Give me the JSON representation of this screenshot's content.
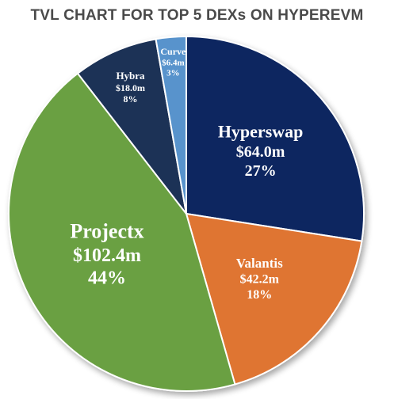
{
  "chart_data": {
    "type": "pie",
    "title": "TVL CHART FOR TOP 5 DEXs ON HYPEREVM",
    "slices": [
      {
        "name": "Hyperswap",
        "value_label": "$64.0m",
        "pct_label": "27%",
        "value": 64.0,
        "percent": 27,
        "color": "#0d2560"
      },
      {
        "name": "Valantis",
        "value_label": "$42.2m",
        "pct_label": "18%",
        "value": 42.2,
        "percent": 18,
        "color": "#df7431"
      },
      {
        "name": "Projectx",
        "value_label": "$102.4m",
        "pct_label": "44%",
        "value": 102.4,
        "percent": 44,
        "color": "#6aa042"
      },
      {
        "name": "Hybra",
        "value_label": "$18.0m",
        "pct_label": "8%",
        "value": 18.0,
        "percent": 8,
        "color": "#1e3257"
      },
      {
        "name": "Curve",
        "value_label": "$6.4m",
        "pct_label": "3%",
        "value": 6.4,
        "percent": 3,
        "color": "#5893cc"
      }
    ],
    "legend_marker_color": "#6aa042"
  }
}
